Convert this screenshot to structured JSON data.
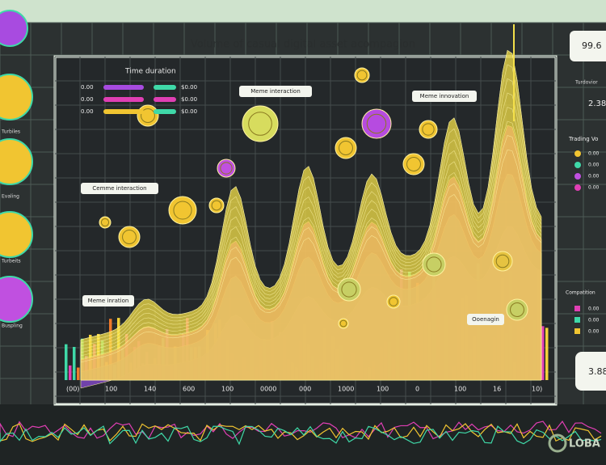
{
  "title": "Volume of casual digital asset acompagion",
  "legend": {
    "title": "Time duration",
    "rows": [
      [
        "0.00",
        "$0.00"
      ],
      [
        "0.00",
        "$0.00"
      ],
      [
        "0.00",
        "$0.00"
      ]
    ]
  },
  "annotations": [
    "Meme interaction",
    "Meme innovation",
    "Cemme interaction",
    "Meme inration",
    "Ooenagin"
  ],
  "x_labels": [
    "(00)",
    "100",
    "140",
    "600",
    "100",
    "0000",
    "000",
    "1000",
    "100",
    "0",
    "100",
    "16",
    "10)"
  ],
  "left_panel": {
    "labels": [
      "Turbiles",
      "Evaling",
      "Turbeits",
      "Buspling"
    ]
  },
  "right_panel": {
    "top_value": "99.6",
    "label": "Turdovior",
    "value": "2.38",
    "heading": "Trading Vo",
    "rows": [
      "0.00",
      "0.00",
      "0.00",
      "0.00"
    ],
    "heading2": "Compatition",
    "rows2": [
      "0.00",
      "0.00",
      "0.00"
    ],
    "bottom_value": "3.88"
  },
  "watermark": "LOBA"
}
